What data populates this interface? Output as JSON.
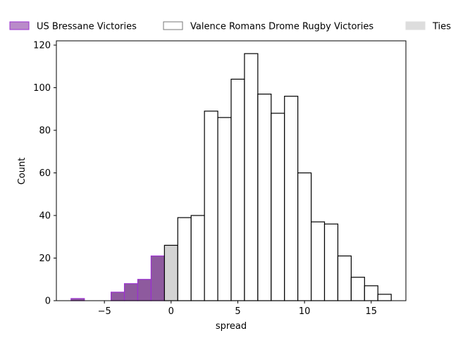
{
  "chart_data": {
    "type": "bar",
    "xlabel": "spread",
    "ylabel": "Count",
    "xlim": [
      -8.6,
      17.6
    ],
    "ylim": [
      0,
      122
    ],
    "x_ticks": [
      -5,
      0,
      5,
      10,
      15
    ],
    "x_tick_labels": [
      "−5",
      "0",
      "5",
      "10",
      "15"
    ],
    "y_ticks": [
      0,
      20,
      40,
      60,
      80,
      100,
      120
    ],
    "y_tick_labels": [
      "0",
      "20",
      "40",
      "60",
      "80",
      "100",
      "120"
    ],
    "grid": false,
    "legend_position": "top, outside plot",
    "series": [
      {
        "name": "US Bressane Victories",
        "fill": "#8e5a9e",
        "stroke": "#9b30d0",
        "bins": [
          {
            "x0": -7.5,
            "x1": -6.5,
            "count": 1
          },
          {
            "x0": -6.5,
            "x1": -5.5,
            "count": 0
          },
          {
            "x0": -5.5,
            "x1": -4.5,
            "count": 0
          },
          {
            "x0": -4.5,
            "x1": -3.5,
            "count": 4
          },
          {
            "x0": -3.5,
            "x1": -2.5,
            "count": 8
          },
          {
            "x0": -2.5,
            "x1": -1.5,
            "count": 10
          },
          {
            "x0": -1.5,
            "x1": -0.5,
            "count": 21
          }
        ]
      },
      {
        "name": "Ties",
        "fill": "#d3d3d3",
        "stroke": "#000000",
        "bins": [
          {
            "x0": -0.5,
            "x1": 0.5,
            "count": 26
          }
        ]
      },
      {
        "name": "Valence Romans Drome Rugby Victories",
        "fill": "#ffffff",
        "stroke": "#000000",
        "bins": [
          {
            "x0": 0.5,
            "x1": 1.5,
            "count": 39
          },
          {
            "x0": 1.5,
            "x1": 2.5,
            "count": 40
          },
          {
            "x0": 2.5,
            "x1": 3.5,
            "count": 89
          },
          {
            "x0": 3.5,
            "x1": 4.5,
            "count": 86
          },
          {
            "x0": 4.5,
            "x1": 5.5,
            "count": 104
          },
          {
            "x0": 5.5,
            "x1": 6.5,
            "count": 116
          },
          {
            "x0": 6.5,
            "x1": 7.5,
            "count": 97
          },
          {
            "x0": 7.5,
            "x1": 8.5,
            "count": 88
          },
          {
            "x0": 8.5,
            "x1": 9.5,
            "count": 96
          },
          {
            "x0": 9.5,
            "x1": 10.5,
            "count": 60
          },
          {
            "x0": 10.5,
            "x1": 11.5,
            "count": 37
          },
          {
            "x0": 11.5,
            "x1": 12.5,
            "count": 36
          },
          {
            "x0": 12.5,
            "x1": 13.5,
            "count": 21
          },
          {
            "x0": 13.5,
            "x1": 14.5,
            "count": 11
          },
          {
            "x0": 14.5,
            "x1": 15.5,
            "count": 7
          },
          {
            "x0": 15.5,
            "x1": 16.5,
            "count": 3
          }
        ]
      }
    ],
    "legend": [
      {
        "label": "US Bressane Victories",
        "fill": "#b98bc9",
        "stroke": "#9b30d0"
      },
      {
        "label": "Valence Romans Drome Rugby Victories",
        "fill": "#ffffff",
        "stroke": "#777777"
      },
      {
        "label": "Ties",
        "fill": "#dddddd",
        "stroke": "#dddddd"
      }
    ]
  }
}
